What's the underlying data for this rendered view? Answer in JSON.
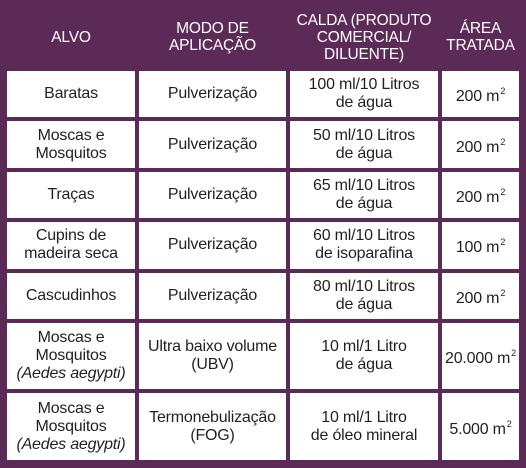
{
  "headers": [
    "ALVO",
    "MODO DE APLICAÇÃO",
    "CALDA (PRODUTO COMERCIAL/ DILUENTE)",
    "ÁREA TRATADA"
  ],
  "header_lines": {
    "alvo": [
      "ALVO"
    ],
    "modo": [
      "MODO DE",
      "APLICAÇÃO"
    ],
    "calda": [
      "CALDA (PRODUTO",
      "COMERCIAL/",
      "DILUENTE)"
    ],
    "area": [
      "ÁREA",
      "TRATADA"
    ]
  },
  "area_unit_exponent": "2",
  "rows": [
    {
      "alvo": [
        "Baratas"
      ],
      "alvo_sci": "",
      "modo": [
        "Pulverização"
      ],
      "calda": [
        "100 ml/10 Litros",
        "de água"
      ],
      "area": "200 m"
    },
    {
      "alvo": [
        "Moscas e",
        "Mosquitos"
      ],
      "alvo_sci": "",
      "modo": [
        "Pulverização"
      ],
      "calda": [
        "50 ml/10 Litros",
        "de água"
      ],
      "area": "200 m"
    },
    {
      "alvo": [
        "Traças"
      ],
      "alvo_sci": "",
      "modo": [
        "Pulverização"
      ],
      "calda": [
        "65 ml/10 Litros",
        "de água"
      ],
      "area": "200 m"
    },
    {
      "alvo": [
        "Cupins de",
        "madeira seca"
      ],
      "alvo_sci": "",
      "modo": [
        "Pulverização"
      ],
      "calda": [
        "60 ml/10 Litros",
        "de isoparafina"
      ],
      "area": "100 m"
    },
    {
      "alvo": [
        "Cascudinhos"
      ],
      "alvo_sci": "",
      "modo": [
        "Pulverização"
      ],
      "calda": [
        "80 ml/10 Litros",
        "de água"
      ],
      "area": "200 m"
    },
    {
      "alvo": [
        "Moscas e",
        "Mosquitos"
      ],
      "alvo_sci": "(Aedes aegypti)",
      "modo": [
        "Ultra baixo volume",
        "(UBV)"
      ],
      "calda": [
        "10 ml/1 Litro",
        "de água"
      ],
      "area": "20.000 m"
    },
    {
      "alvo": [
        "Moscas e",
        "Mosquitos"
      ],
      "alvo_sci": "(Aedes aegypti)",
      "modo": [
        "Termonebulização",
        "(FOG)"
      ],
      "calda": [
        "10 ml/1 Litro",
        "de óleo mineral"
      ],
      "area": "5.000 m"
    }
  ],
  "colors": {
    "header_bg": "#5c2a57",
    "header_text": "#ffffff",
    "cell_bg": "#ffffff",
    "cell_text": "#231f20"
  }
}
